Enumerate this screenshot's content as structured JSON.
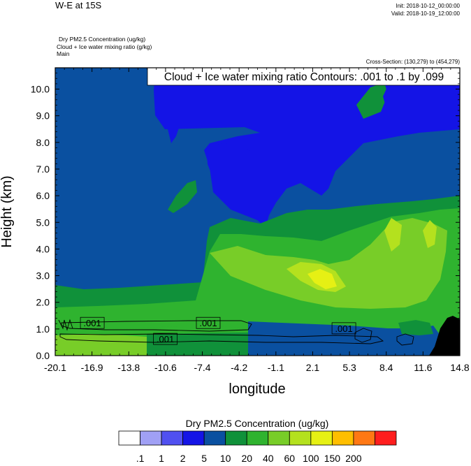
{
  "header": {
    "title": "W-E at 15S",
    "init": "Init: 2018-10-12_00:00:00",
    "valid": "Valid: 2018-10-19_12:00:00",
    "field1": "Dry PM2.5 Concentration   (ug/kg)",
    "field2": "Cloud + Ice water mixing ratio   (g/kg)",
    "field3": "Main",
    "cross_section": "Cross-Section: (130,279) to (454,279)"
  },
  "chart_data": {
    "type": "heatmap",
    "title": "W-E at 15S",
    "xlabel": "longitude",
    "ylabel": "Height (km)",
    "xlim": [
      -20.1,
      14.8
    ],
    "ylim": [
      0.0,
      10.8
    ],
    "x_ticks": [
      "-20.1",
      "-16.9",
      "-13.8",
      "-10.6",
      "-7.4",
      "-4.2",
      "-1.1",
      "2.1",
      "5.3",
      "8.4",
      "11.6",
      "14.8"
    ],
    "y_ticks": [
      "0.0",
      "1.0",
      "2.0",
      "3.0",
      "4.0",
      "5.0",
      "6.0",
      "7.0",
      "8.0",
      "9.0",
      "10.0"
    ],
    "contour_info": "Cloud + Ice water mixing ratio Contours: .001 to .1 by .099",
    "contour_labels": [
      {
        "text": ".001",
        "x": -16.9,
        "y": 1.2
      },
      {
        "text": ".001",
        "x": -10.6,
        "y": 0.6
      },
      {
        "text": ".001",
        "x": -6.9,
        "y": 1.2
      },
      {
        "text": ".001",
        "x": 4.8,
        "y": 1.0
      }
    ],
    "colorbar": {
      "title": "Dry PM2.5 Concentration  (ug/kg)",
      "labels": [
        ".1",
        "1",
        "2",
        "5",
        "10",
        "20",
        "40",
        "60",
        "100",
        "150",
        "200"
      ],
      "colors": [
        "#ffffff",
        "#a0a0f5",
        "#5050f0",
        "#1414e6",
        "#0a50a0",
        "#10913a",
        "#2fb32f",
        "#78cd28",
        "#b4e11e",
        "#e6f014",
        "#ffbe00",
        "#ff7814",
        "#ff1e1e"
      ]
    }
  }
}
